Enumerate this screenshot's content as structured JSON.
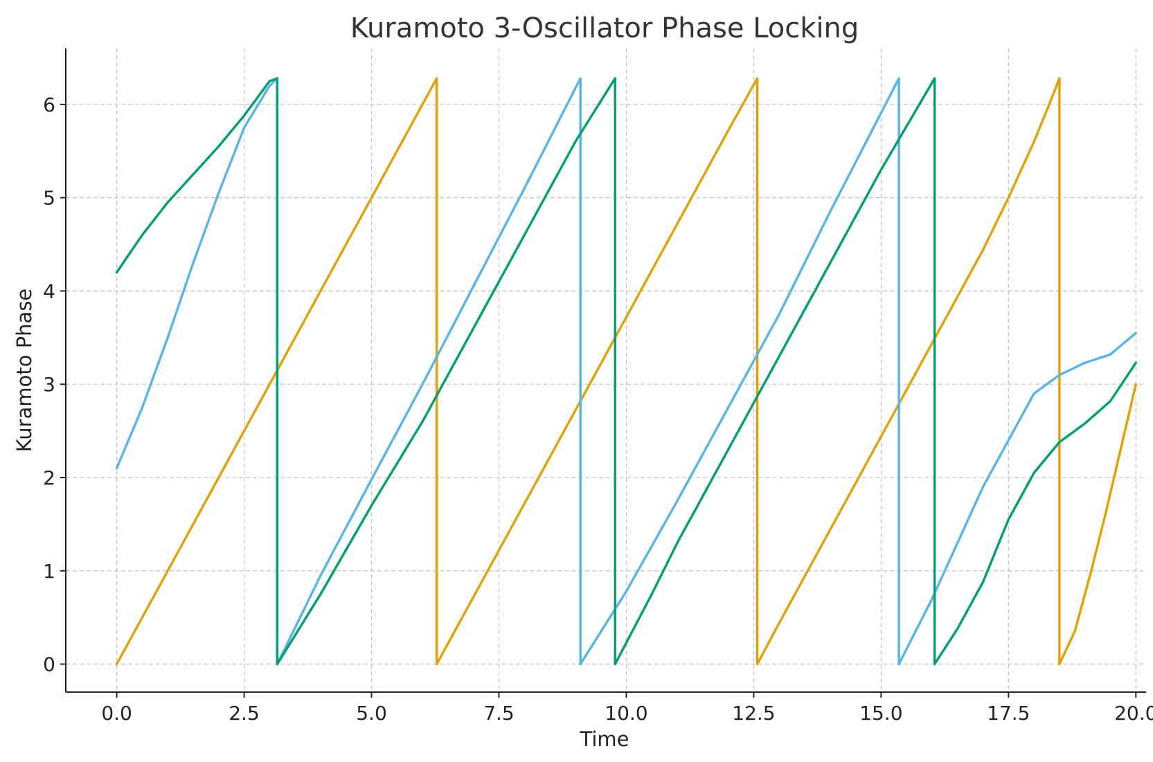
{
  "chart_data": {
    "type": "line",
    "title": "Kuramoto 3-Oscillator Phase Locking",
    "xlabel": "Time",
    "ylabel": "Kuramoto Phase",
    "xlim": [
      -1,
      20.2
    ],
    "ylim": [
      -0.3,
      6.6
    ],
    "xticks": [
      0,
      2.5,
      5,
      7.5,
      10,
      12.5,
      15,
      17.5,
      20
    ],
    "xtick_labels": [
      "0.0",
      "2.5",
      "5.0",
      "7.5",
      "10.0",
      "12.5",
      "15.0",
      "17.5",
      "20.0"
    ],
    "yticks": [
      0,
      1,
      2,
      3,
      4,
      5,
      6
    ],
    "ytick_labels": [
      "0",
      "1",
      "2",
      "3",
      "4",
      "5",
      "6"
    ],
    "grid": true,
    "legend": "none",
    "series": [
      {
        "color": "#E69F00",
        "x": [
          0,
          1,
          2,
          3,
          4,
          5,
          6,
          6.28,
          6.28,
          7,
          8,
          9,
          10,
          11,
          12,
          12.57,
          12.57,
          13,
          14,
          15,
          16,
          17,
          17.5,
          18,
          18.3,
          18.5,
          18.5,
          18.8,
          19.1,
          19.4,
          19.7,
          20
        ],
        "y": [
          0,
          1,
          2,
          3,
          4,
          5,
          6,
          6.28,
          0,
          0.72,
          1.72,
          2.72,
          3.72,
          4.72,
          5.72,
          6.28,
          0,
          0.44,
          1.44,
          2.44,
          3.44,
          4.44,
          5.0,
          5.6,
          6.0,
          6.28,
          0,
          0.35,
          0.95,
          1.6,
          2.3,
          3.0
        ]
      },
      {
        "color": "#56B4E9",
        "x": [
          0,
          0.5,
          1,
          1.5,
          2,
          2.5,
          3,
          3.15,
          3.15,
          4,
          5,
          6,
          7,
          8,
          9.1,
          9.1,
          10,
          11,
          12,
          13,
          14,
          15.35,
          15.35,
          16,
          17,
          18,
          18.5,
          19,
          19.5,
          20
        ],
        "y": [
          2.1,
          2.75,
          3.5,
          4.3,
          5.05,
          5.75,
          6.2,
          6.28,
          0,
          0.95,
          1.98,
          3.0,
          4.05,
          5.1,
          6.28,
          0,
          0.78,
          1.75,
          2.75,
          3.75,
          4.85,
          6.28,
          0,
          0.7,
          1.9,
          2.9,
          3.1,
          3.23,
          3.32,
          3.55
        ]
      },
      {
        "color": "#009E73",
        "x": [
          0,
          0.5,
          1,
          1.5,
          2,
          2.5,
          3,
          3.15,
          3.15,
          4,
          5,
          6,
          7,
          8,
          9,
          9.78,
          9.78,
          10.5,
          11,
          12,
          13,
          14,
          15,
          16.05,
          16.05,
          16.5,
          17,
          17.5,
          18,
          18.5,
          19,
          19.5,
          20
        ],
        "y": [
          4.2,
          4.6,
          4.95,
          5.25,
          5.55,
          5.88,
          6.25,
          6.28,
          0,
          0.75,
          1.7,
          2.6,
          3.6,
          4.6,
          5.6,
          6.28,
          0,
          0.75,
          1.3,
          2.3,
          3.3,
          4.3,
          5.3,
          6.28,
          0,
          0.38,
          0.88,
          1.55,
          2.05,
          2.38,
          2.58,
          2.82,
          3.23
        ]
      }
    ]
  }
}
